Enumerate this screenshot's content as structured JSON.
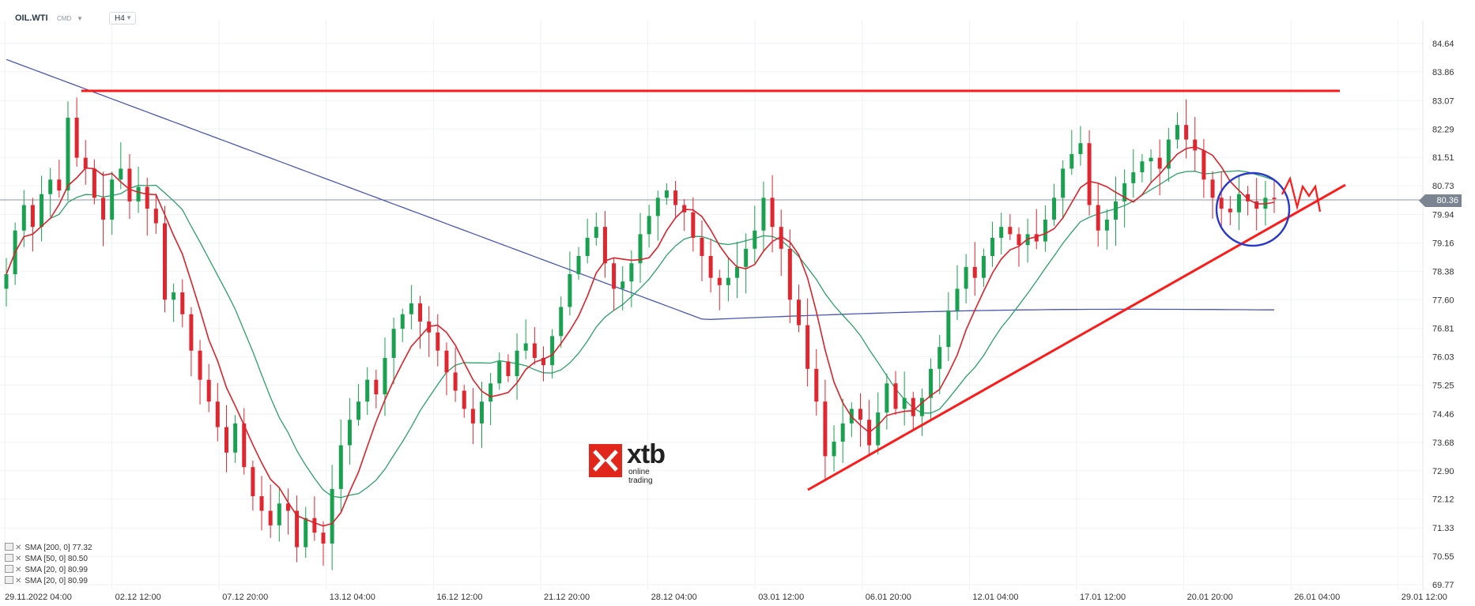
{
  "header": {
    "symbol": "OIL.WTI",
    "market": "CMD",
    "timeframe": "H4"
  },
  "price_badge": "80.36",
  "logo": {
    "word": "xtb",
    "sub": "online trading"
  },
  "legend": [
    {
      "label": "SMA",
      "params": "[200, 0]",
      "value": "77.32"
    },
    {
      "label": "SMA",
      "params": "[50, 0]",
      "value": "80.50"
    },
    {
      "label": "SMA",
      "params": "[20, 0]",
      "value": "80.99"
    },
    {
      "label": "SMA",
      "params": "[20, 0]",
      "value": "80.99"
    }
  ],
  "colors": {
    "up": "#1aa150",
    "down": "#e0262f",
    "sma200": "#4a57b0",
    "sma50": "#2e9e6a",
    "sma20": "#d9232c",
    "annotation": "#ff1a1a",
    "circle": "#2838c8"
  },
  "chart_data": {
    "type": "candlestick",
    "y_ticks": [
      "84.64",
      "83.86",
      "83.07",
      "82.29",
      "81.51",
      "80.73",
      "79.94",
      "79.16",
      "78.38",
      "77.60",
      "76.81",
      "76.03",
      "75.25",
      "74.46",
      "73.68",
      "72.90",
      "72.12",
      "71.33",
      "70.55",
      "69.77"
    ],
    "x_ticks": [
      "29.11.2022  04:00",
      "02.12  12:00",
      "07.12  20:00",
      "13.12  04:00",
      "16.12  12:00",
      "21.12  20:00",
      "28.12  04:00",
      "03.01  12:00",
      "06.01  20:00",
      "12.01  04:00",
      "17.01  12:00",
      "20.01  20:00",
      "26.01  04:00",
      "29.01  12:00"
    ],
    "ylim": [
      69.77,
      84.64
    ],
    "current_price": 80.36,
    "resistance_level": 83.2,
    "support_trendline": [
      {
        "x": "04.01",
        "y": 72.3
      },
      {
        "x": "26.01",
        "y": 80.7
      }
    ],
    "close_path": [
      78.3,
      79.5,
      80.2,
      79.6,
      80.5,
      80.9,
      80.6,
      82.6,
      81.5,
      81.2,
      80.4,
      79.8,
      80.9,
      81.2,
      80.3,
      80.7,
      80.1,
      79.7,
      77.6,
      77.8,
      77.2,
      76.2,
      75.4,
      74.8,
      74.1,
      73.4,
      74.2,
      73.0,
      72.2,
      71.8,
      71.4,
      72.0,
      71.8,
      70.8,
      71.6,
      71.2,
      70.9,
      72.4,
      73.6,
      74.3,
      74.8,
      75.4,
      75.0,
      76.0,
      76.8,
      77.2,
      77.5,
      77.0,
      76.7,
      76.2,
      75.6,
      75.1,
      74.6,
      74.2,
      74.8,
      75.3,
      75.9,
      75.5,
      76.2,
      76.4,
      76.0,
      75.8,
      76.6,
      77.4,
      78.3,
      78.8,
      79.3,
      79.6,
      78.6,
      77.9,
      78.1,
      78.6,
      79.4,
      79.9,
      80.4,
      80.6,
      80.2,
      80.0,
      79.3,
      78.8,
      78.2,
      78.0,
      78.2,
      78.5,
      79.0,
      79.5,
      80.4,
      79.6,
      79.0,
      77.6,
      76.9,
      75.7,
      74.8,
      73.3,
      73.7,
      74.2,
      74.6,
      74.3,
      73.6,
      74.5,
      75.3,
      74.6,
      74.9,
      74.4,
      74.9,
      75.7,
      76.3,
      77.3,
      77.9,
      78.5,
      78.2,
      78.8,
      79.3,
      79.6,
      79.4,
      79.1,
      79.4,
      79.2,
      79.8,
      80.4,
      81.2,
      81.6,
      81.9,
      80.2,
      79.5,
      79.8,
      80.3,
      80.8,
      81.1,
      81.4,
      81.5,
      81.2,
      82.0,
      82.4,
      82.0,
      81.7,
      80.9,
      80.4,
      80.1,
      80.0,
      80.5,
      80.3,
      80.1,
      80.4,
      80.36
    ]
  }
}
